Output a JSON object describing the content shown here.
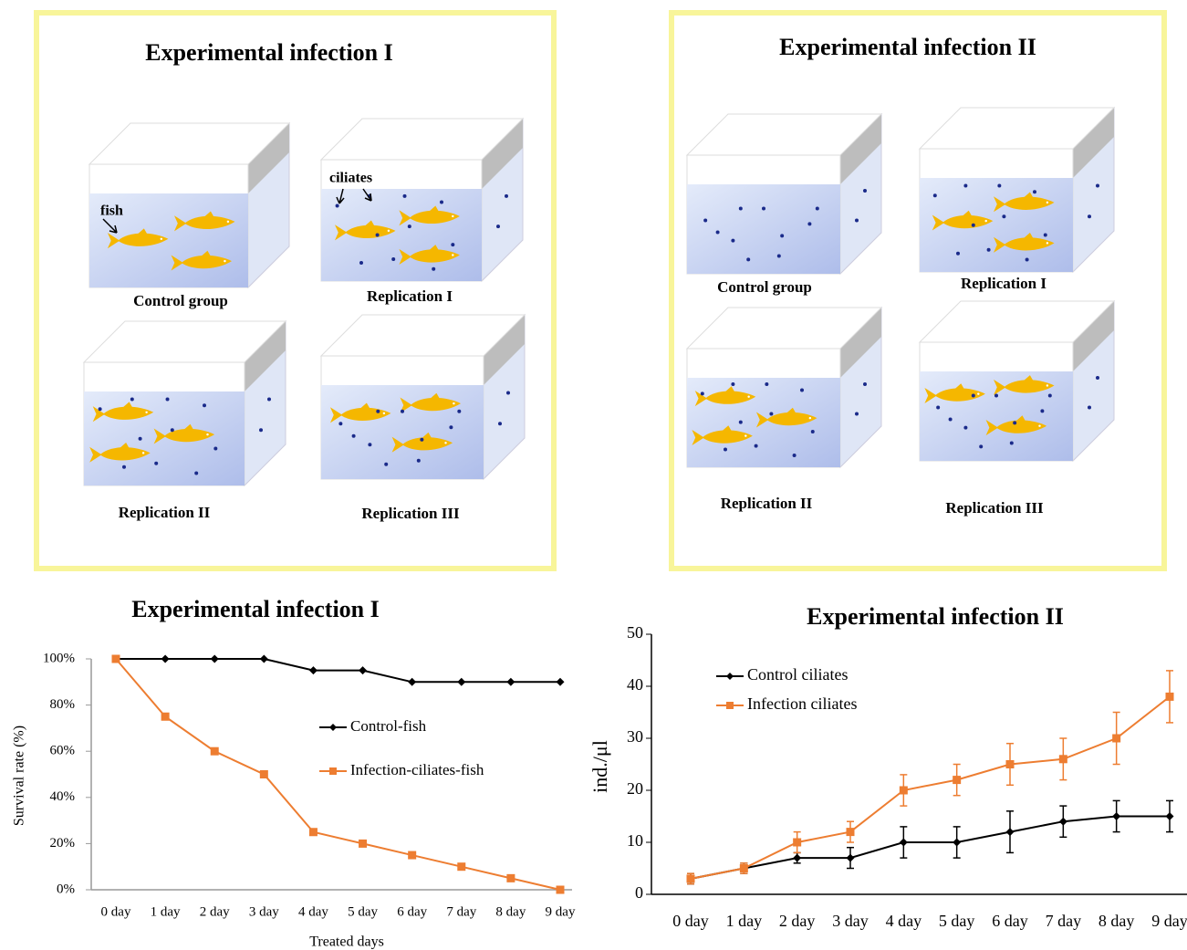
{
  "panels": [
    {
      "title": "Experimental infection I",
      "annotations": [
        "fish",
        "ciliates"
      ],
      "tanks": [
        {
          "label": "Control group"
        },
        {
          "label": "Replication I"
        },
        {
          "label": "Replication II"
        },
        {
          "label": "Replication III"
        }
      ]
    },
    {
      "title": "Experimental infection II",
      "tanks": [
        {
          "label": "Control group"
        },
        {
          "label": "Replication I"
        },
        {
          "label": "Replication II"
        },
        {
          "label": "Replication III"
        }
      ]
    }
  ],
  "chart_data": [
    {
      "type": "line",
      "title": "Experimental infection I",
      "y_label": "Survival rate (%)",
      "x_label": "Treated days",
      "categories": [
        "0 day",
        "1 day",
        "2 day",
        "3 day",
        "4 day",
        "5 day",
        "6 day",
        "7 day",
        "8 day",
        "9 day"
      ],
      "series": [
        {
          "name": "Control-fish",
          "color": "#000000",
          "marker": "diamond",
          "values": [
            100,
            100,
            100,
            100,
            95,
            95,
            90,
            90,
            90,
            90
          ]
        },
        {
          "name": "Infection-ciliates-fish",
          "color": "#ed7d31",
          "marker": "square",
          "values": [
            100,
            75,
            60,
            50,
            25,
            20,
            15,
            10,
            5,
            0
          ]
        }
      ],
      "ylim": [
        0,
        100
      ],
      "yticks": [
        {
          "value": 0,
          "label": "0%"
        },
        {
          "value": 20,
          "label": "20%"
        },
        {
          "value": 40,
          "label": "40%"
        },
        {
          "value": 60,
          "label": "60%"
        },
        {
          "value": 80,
          "label": "80%"
        },
        {
          "value": 100,
          "label": "100%"
        }
      ]
    },
    {
      "type": "errorline",
      "title": "Experimental infection II",
      "y_label": "ind./μl",
      "categories": [
        "0 day",
        "1 day",
        "2 day",
        "3 day",
        "4 day",
        "5 day",
        "6 day",
        "7 day",
        "8 day",
        "9 day"
      ],
      "series": [
        {
          "name": "Control ciliates",
          "color": "#000000",
          "marker": "diamond",
          "values": [
            3,
            5,
            7,
            7,
            10,
            10,
            12,
            14,
            15,
            15
          ],
          "errors": [
            1,
            1,
            1,
            2,
            3,
            3,
            4,
            3,
            3,
            3
          ]
        },
        {
          "name": "Infection ciliates",
          "color": "#ed7d31",
          "marker": "square",
          "values": [
            3,
            5,
            10,
            12,
            20,
            22,
            25,
            26,
            30,
            38
          ],
          "errors": [
            1,
            1,
            2,
            2,
            3,
            3,
            4,
            4,
            5,
            5
          ]
        }
      ],
      "ylim": [
        0,
        50
      ],
      "yticks": [
        0,
        10,
        20,
        30,
        40,
        50
      ]
    }
  ]
}
